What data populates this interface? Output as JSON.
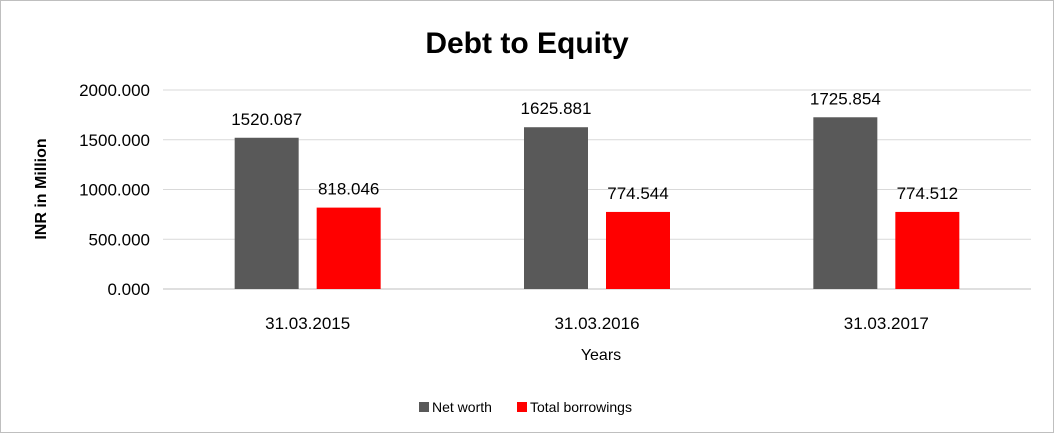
{
  "chart_data": {
    "type": "bar",
    "title": "Debt to Equity",
    "xlabel": "Years",
    "ylabel": "INR in Million",
    "categories": [
      "31.03.2015",
      "31.03.2016",
      "31.03.2017"
    ],
    "series": [
      {
        "name": "Net worth",
        "values": [
          1520.087,
          1625.881,
          1725.854
        ],
        "color": "#595959"
      },
      {
        "name": "Total borrowings",
        "values": [
          818.046,
          774.544,
          774.512
        ],
        "color": "#ff0000"
      }
    ],
    "value_labels": [
      [
        "1520.087",
        "1625.881",
        "1725.854"
      ],
      [
        "818.046",
        "774.544",
        "774.512"
      ]
    ],
    "ylim": [
      0,
      2000
    ],
    "yticks": [
      "0.000",
      "500.000",
      "1000.000",
      "1500.000",
      "2000.000"
    ],
    "ytick_values": [
      0,
      500,
      1000,
      1500,
      2000
    ],
    "grid": true,
    "legend_position": "bottom"
  }
}
